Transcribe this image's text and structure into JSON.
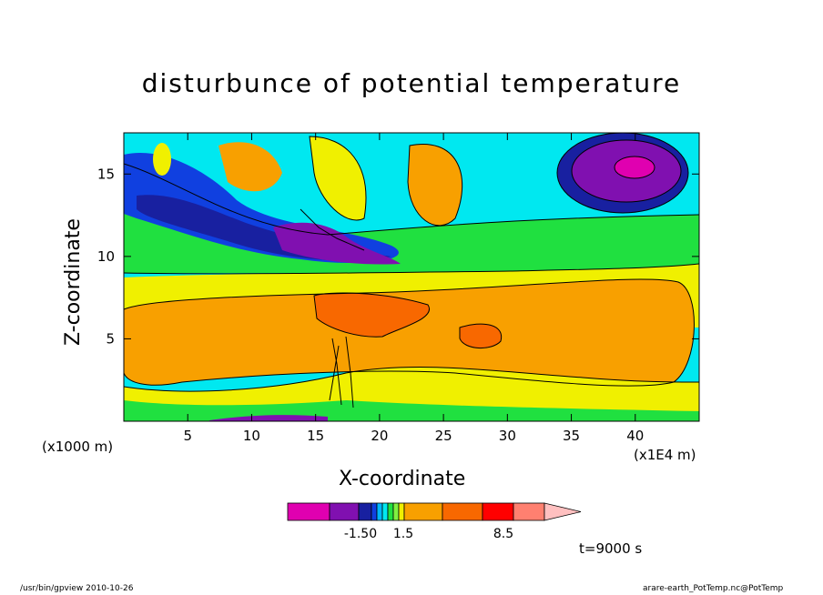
{
  "chart_data": {
    "type": "heatmap",
    "title": "disturbunce of potential temperature",
    "xlabel": "X-coordinate",
    "ylabel": "Z-coordinate",
    "x_unit_left": "(x1000 m)",
    "x_unit_right": "(x1E4 m)",
    "xlim": [
      0,
      45
    ],
    "ylim": [
      0,
      17.5
    ],
    "x_ticks": [
      5,
      10,
      15,
      20,
      25,
      30,
      35,
      40
    ],
    "y_ticks": [
      5,
      10,
      15
    ],
    "colorbar": {
      "colors": [
        "#e000b0",
        "#8010b0",
        "#1820a0",
        "#1040e0",
        "#00b8ff",
        "#00e8f0",
        "#20e040",
        "#80f040",
        "#f0f000",
        "#f8a000",
        "#f86800",
        "#ff0000",
        "#ff8070",
        "#ffc0c0"
      ],
      "labels": [
        "-1.50",
        "1.5",
        "8.5"
      ]
    },
    "time_label": "t=9000 s"
  },
  "footer": {
    "left": "/usr/bin/gpview   2010-10-26",
    "right": "arare-earth_PotTemp.nc@PotTemp"
  },
  "colors": {
    "magenta": "#e000b0",
    "purple": "#8010b0",
    "navy": "#1820a0",
    "blue": "#1040e0",
    "cyan": "#00e8f0",
    "green": "#20e040",
    "yellow": "#f0f000",
    "orange": "#f8a000",
    "dark_orange": "#f86800"
  }
}
